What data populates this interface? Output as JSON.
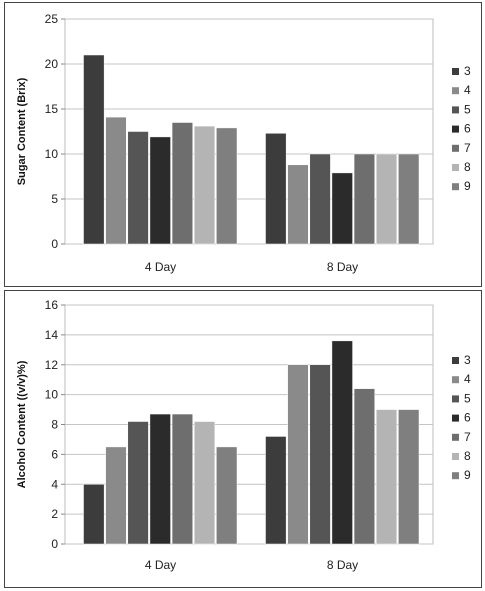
{
  "chart_data": [
    {
      "type": "bar",
      "xlabel": "",
      "ylabel": "Sugar Content (Brix)",
      "ylim": [
        0,
        25
      ],
      "yticks": [
        0,
        5,
        10,
        15,
        20,
        25
      ],
      "grid": true,
      "legend": "right",
      "categories": [
        "4 Day",
        "8 Day"
      ],
      "series": [
        {
          "name": "3",
          "color": "#3c3c3c",
          "values": [
            21,
            12.3
          ]
        },
        {
          "name": "4",
          "color": "#8a8a8a",
          "values": [
            14.1,
            8.8
          ]
        },
        {
          "name": "5",
          "color": "#555555",
          "values": [
            12.5,
            10
          ]
        },
        {
          "name": "6",
          "color": "#2b2b2b",
          "values": [
            11.9,
            7.9
          ]
        },
        {
          "name": "7",
          "color": "#6e6e6e",
          "values": [
            13.5,
            10
          ]
        },
        {
          "name": "8",
          "color": "#b4b4b4",
          "values": [
            13.1,
            10
          ]
        },
        {
          "name": "9",
          "color": "#7f7f7f",
          "values": [
            12.9,
            10
          ]
        }
      ]
    },
    {
      "type": "bar",
      "xlabel": "",
      "ylabel": "Alcohol Content ((v/v)%)",
      "ylim": [
        0,
        16
      ],
      "yticks": [
        0,
        2,
        4,
        6,
        8,
        10,
        12,
        14,
        16
      ],
      "grid": true,
      "legend": "right",
      "categories": [
        "4 Day",
        "8 Day"
      ],
      "series": [
        {
          "name": "3",
          "color": "#3c3c3c",
          "values": [
            4,
            7.2
          ]
        },
        {
          "name": "4",
          "color": "#8a8a8a",
          "values": [
            6.5,
            12
          ]
        },
        {
          "name": "5",
          "color": "#555555",
          "values": [
            8.2,
            12
          ]
        },
        {
          "name": "6",
          "color": "#2b2b2b",
          "values": [
            8.7,
            13.6
          ]
        },
        {
          "name": "7",
          "color": "#6e6e6e",
          "values": [
            8.7,
            10.4
          ]
        },
        {
          "name": "8",
          "color": "#b4b4b4",
          "values": [
            8.2,
            9
          ]
        },
        {
          "name": "9",
          "color": "#7f7f7f",
          "values": [
            6.5,
            9
          ]
        }
      ]
    }
  ]
}
